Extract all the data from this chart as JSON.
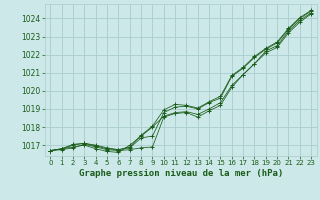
{
  "xlabel": "Graphe pression niveau de la mer (hPa)",
  "background_color": "#cce8e8",
  "grid_color": "#aacccc",
  "line_color": "#1a5c1a",
  "x_ticks": [
    0,
    1,
    2,
    3,
    4,
    5,
    6,
    7,
    8,
    9,
    10,
    11,
    12,
    13,
    14,
    15,
    16,
    17,
    18,
    19,
    20,
    21,
    22,
    23
  ],
  "ylim": [
    1016.4,
    1024.8
  ],
  "xlim": [
    -0.5,
    23.5
  ],
  "yticks": [
    1017,
    1018,
    1019,
    1020,
    1021,
    1022,
    1023,
    1024
  ],
  "series1": [
    1016.7,
    1016.75,
    1016.85,
    1017.05,
    1016.9,
    1016.75,
    1016.7,
    1016.75,
    1016.85,
    1016.9,
    1018.55,
    1018.75,
    1018.8,
    1018.55,
    1018.9,
    1019.2,
    1020.2,
    1020.9,
    1021.5,
    1022.1,
    1022.4,
    1023.2,
    1023.8,
    1024.25
  ],
  "series2": [
    1016.7,
    1016.8,
    1017.05,
    1017.1,
    1016.95,
    1016.8,
    1016.75,
    1016.9,
    1017.55,
    1018.05,
    1018.95,
    1019.25,
    1019.2,
    1019.05,
    1019.4,
    1019.7,
    1020.85,
    1021.3,
    1021.9,
    1022.35,
    1022.7,
    1023.45,
    1024.05,
    1024.45
  ],
  "series3": [
    1016.7,
    1016.8,
    1017.0,
    1017.1,
    1017.0,
    1016.85,
    1016.75,
    1016.85,
    1017.4,
    1017.5,
    1018.8,
    1019.1,
    1019.15,
    1019.0,
    1019.35,
    1019.6,
    1020.8,
    1021.25,
    1021.85,
    1022.3,
    1022.65,
    1023.4,
    1024.0,
    1024.4
  ],
  "series4": [
    1016.7,
    1016.8,
    1016.9,
    1017.0,
    1016.8,
    1016.65,
    1016.6,
    1017.0,
    1017.5,
    1018.0,
    1018.6,
    1018.8,
    1018.85,
    1018.7,
    1019.0,
    1019.35,
    1020.3,
    1020.9,
    1021.5,
    1022.2,
    1022.5,
    1023.3,
    1023.9,
    1024.3
  ],
  "ylabel_fontsize": 5.5,
  "xlabel_fontsize": 6.5,
  "tick_fontsize": 5.0
}
